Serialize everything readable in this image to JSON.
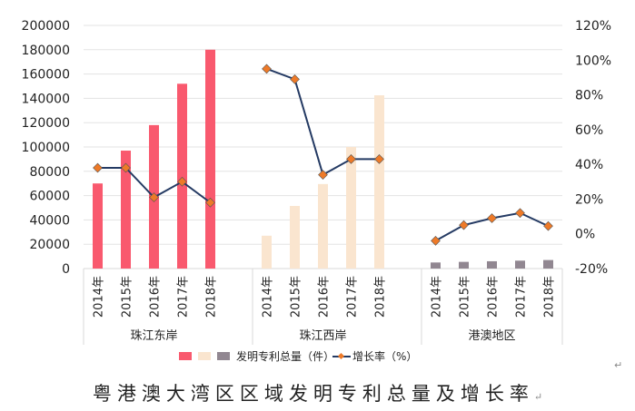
{
  "chart_data": {
    "type": "bar+line",
    "title": "粤港澳大湾区区域发明专利总量及增长率",
    "groups": [
      {
        "name": "珠江东岸",
        "color": "#F9596E",
        "years": [
          "2014年",
          "2015年",
          "2016年",
          "2017年",
          "2018年"
        ],
        "patents": [
          70000,
          97000,
          118000,
          152000,
          180000
        ],
        "growth_pct": [
          38,
          38,
          21,
          30,
          18
        ]
      },
      {
        "name": "珠江西岸",
        "color": "#FAE5CF",
        "years": [
          "2014年",
          "2015年",
          "2016年",
          "2017年",
          "2018年"
        ],
        "patents": [
          27000,
          51500,
          69500,
          100000,
          142500
        ],
        "growth_pct": [
          95,
          89,
          34,
          43,
          43
        ]
      },
      {
        "name": "港澳地区",
        "color": "#918791",
        "years": [
          "2014年",
          "2015年",
          "2016年",
          "2017年",
          "2018年"
        ],
        "patents": [
          5000,
          5500,
          6000,
          6500,
          7000
        ],
        "growth_pct": [
          -4,
          5,
          9,
          12,
          4.5
        ]
      }
    ],
    "y_left": {
      "min": 0,
      "max": 200000,
      "step": 20000,
      "ticks": [
        "0",
        "20000",
        "40000",
        "60000",
        "80000",
        "100000",
        "120000",
        "140000",
        "160000",
        "180000",
        "200000"
      ]
    },
    "y_right": {
      "min": -20,
      "max": 120,
      "step": 20,
      "ticks": [
        "-20%",
        "0%",
        "20%",
        "40%",
        "60%",
        "80%",
        "100%",
        "120%"
      ]
    },
    "legend": {
      "bar_label": "发明专利总量（件）",
      "line_label": "增长率（%）",
      "position": "bottom"
    },
    "line_color": "#243A63",
    "marker_color": "#EE7A28",
    "grid": true
  },
  "caption": "粤港澳大湾区区域发明专利总量及增长率",
  "paragraph_mark": "↵"
}
